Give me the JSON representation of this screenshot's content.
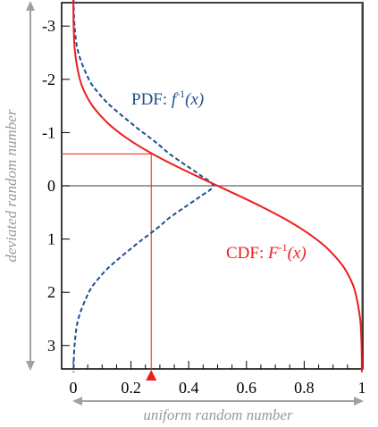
{
  "chart_data": {
    "type": "line",
    "xlabel": "uniform random number",
    "ylabel": "deviated random number",
    "xlim": [
      0,
      1
    ],
    "ylim": [
      -3.5,
      3.5
    ],
    "y_inverted": true,
    "x_ticks": [
      "0",
      "0.2",
      "0.4",
      "0.6",
      "0.8",
      "1"
    ],
    "x_tick_values": [
      0,
      0.2,
      0.4,
      0.6,
      0.8,
      1
    ],
    "y_ticks": [
      "-3",
      "-2",
      "-1",
      "0",
      "1",
      "2",
      "3"
    ],
    "y_tick_values": [
      -3,
      -2,
      -1,
      0,
      1,
      2,
      3
    ],
    "grid": false,
    "series": [
      {
        "name": "PDF",
        "style": "dashed",
        "color": "#1f4e8c",
        "x": [
          0.0009,
          0.0044,
          0.0175,
          0.054,
          0.0863,
          0.1295,
          0.2179,
          0.2661,
          0.3011,
          0.3332,
          0.3863,
          0.4398,
          0.4839,
          0.4398,
          0.3863,
          0.3332,
          0.3011,
          0.2661,
          0.2179,
          0.1295,
          0.0863,
          0.054,
          0.0175,
          0.0044,
          0.0009
        ],
        "y": [
          -3.5,
          -3.0,
          -2.5,
          -2.0,
          -1.75,
          -1.5,
          -1.1,
          -0.9,
          -0.75,
          -0.6,
          -0.4,
          -0.2,
          0,
          0.2,
          0.4,
          0.6,
          0.75,
          0.9,
          1.1,
          1.5,
          1.75,
          2.0,
          2.5,
          3.0,
          3.5
        ]
      },
      {
        "name": "CDF",
        "style": "solid",
        "color": "#ee1c1c",
        "x": [
          0.0002,
          0.0013,
          0.0062,
          0.0228,
          0.0401,
          0.0668,
          0.1151,
          0.1587,
          0.2119,
          0.2743,
          0.3446,
          0.4207,
          0.5,
          0.5793,
          0.6554,
          0.7257,
          0.7881,
          0.8413,
          0.8849,
          0.9332,
          0.9599,
          0.9772,
          0.9938,
          0.9987,
          0.9998
        ],
        "y": [
          -3.5,
          -3.0,
          -2.5,
          -2.0,
          -1.75,
          -1.5,
          -1.2,
          -1.0,
          -0.8,
          -0.6,
          -0.4,
          -0.2,
          0,
          0.2,
          0.4,
          0.6,
          0.8,
          1.0,
          1.2,
          1.5,
          1.75,
          2.0,
          2.5,
          3.0,
          3.5
        ]
      }
    ],
    "annotations": {
      "pdf_label": {
        "prefix": "PDF: ",
        "func": "f",
        "sup": "-1",
        "arg": "(x)"
      },
      "cdf_label": {
        "prefix": "CDF: ",
        "func": "F",
        "sup": "-1",
        "arg": "(x)"
      },
      "sample": {
        "x": 0.27,
        "y": -0.6
      }
    }
  }
}
